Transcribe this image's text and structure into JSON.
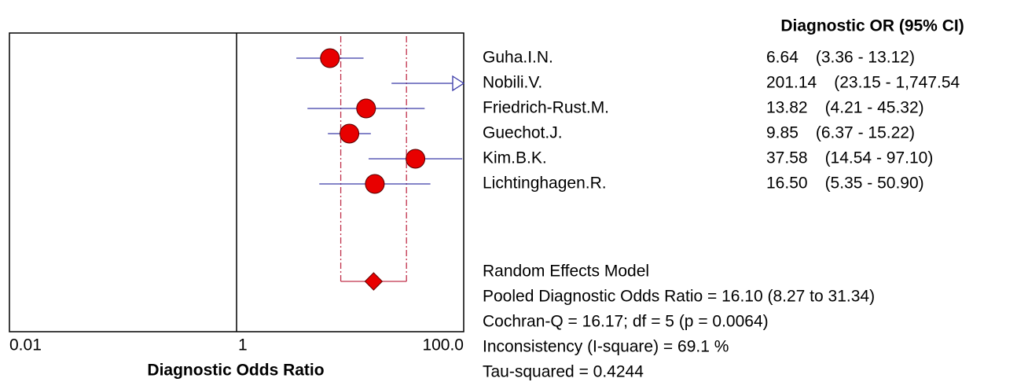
{
  "chart_data": {
    "type": "forest",
    "column_header": "Diagnostic OR (95% CI)",
    "xlabel": "Diagnostic Odds Ratio",
    "xscale": "log",
    "xlim": [
      0.01,
      100
    ],
    "xticks": [
      0.01,
      1,
      {
        "value": 100,
        "label": "100.0"
      }
    ],
    "categories": [
      "Guha.I.N.",
      "Nobili.V.",
      "Friedrich-Rust.M.",
      "Guechot.J.",
      "Kim.B.K.",
      "Lichtinghagen.R."
    ],
    "values": [
      6.64,
      201.14,
      13.82,
      9.85,
      37.58,
      16.5
    ],
    "value_labels": [
      "6.64",
      "201.14",
      "13.82",
      "9.85",
      "37.58",
      "16.50"
    ],
    "lower": [
      3.36,
      23.15,
      4.21,
      6.37,
      14.54,
      5.35
    ],
    "upper": [
      13.12,
      1747.54,
      45.32,
      15.22,
      97.1,
      50.9
    ],
    "ci_labels": [
      "(3.36 - 13.12)",
      "(23.15 - 1,747.54",
      "(4.21 - 45.32)",
      "(6.37 - 15.22)",
      "(14.54 - 97.10)",
      "(5.35 - 50.90)"
    ],
    "pooled": {
      "value": 16.1,
      "lower": 8.27,
      "upper": 31.34
    },
    "point_color": "#e80000",
    "ci_color": "#3a3aa8",
    "pooled_line_color": "#c0304a",
    "summary": [
      "Random Effects Model",
      "Pooled Diagnostic Odds Ratio = 16.10 (8.27 to 31.34)",
      "Cochran-Q = 16.17; df =  5 (p = 0.0064)",
      "Inconsistency (I-square) = 69.1 %",
      "Tau-squared = 0.4244"
    ]
  }
}
